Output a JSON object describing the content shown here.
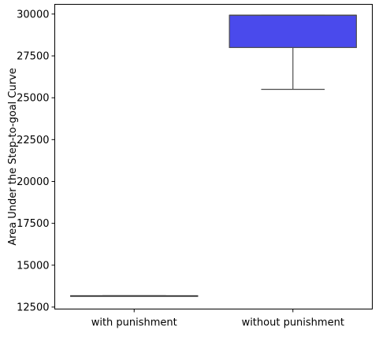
{
  "chart_data": {
    "type": "box",
    "title": "",
    "xlabel": "",
    "ylabel": "Area Under the Step-to-goal Curve",
    "categories": [
      "with punishment",
      "without punishment"
    ],
    "boxes": [
      {
        "name": "with punishment",
        "whisker_low": 13150,
        "q1": 13150,
        "median": 13150,
        "q3": 13180,
        "whisker_high": 13180
      },
      {
        "name": "without punishment",
        "whisker_low": 25500,
        "q1": 28000,
        "median": 29930,
        "q3": 29930,
        "whisker_high": 29930
      }
    ],
    "yticks": [
      12500,
      15000,
      17500,
      20000,
      22500,
      25000,
      27500,
      30000
    ],
    "ylim": [
      12380,
      30580
    ],
    "grid": false,
    "box_color": "#4a4aec",
    "line_color": "#4d4d4d"
  }
}
